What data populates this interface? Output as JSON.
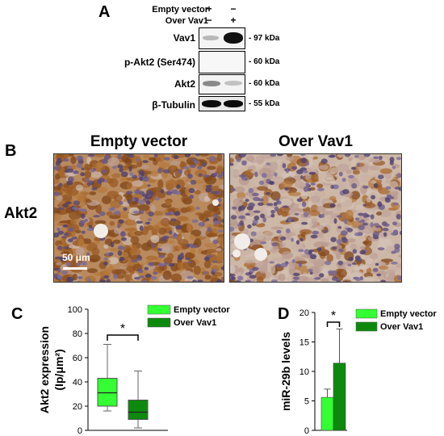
{
  "panelA": {
    "letter": "A",
    "conditions": [
      {
        "label": "Empty vector",
        "lane1": "+",
        "lane2": "−"
      },
      {
        "label": "Over Vav1",
        "lane1": "−",
        "lane2": "+"
      }
    ],
    "blots": [
      {
        "protein": "Vav1",
        "kda": "- 97 kDa"
      },
      {
        "protein": "p-Akt2 (Ser474)",
        "kda": "- 60 kDa"
      },
      {
        "protein": "Akt2",
        "kda": "- 60 kDa"
      },
      {
        "protein": "β-Tubulin",
        "kda": "- 55 kDa"
      }
    ]
  },
  "panelB": {
    "letter": "B",
    "row_label": "Akt2",
    "titles": [
      "Empty vector",
      "Over Vav1"
    ],
    "scale_bar": "50 μm",
    "brown_staining_level": [
      0.85,
      0.3
    ]
  },
  "panelC": {
    "letter": "C",
    "significance": "*",
    "legend": [
      "Empty vector",
      "Over Vav1"
    ]
  },
  "panelD": {
    "letter": "D",
    "significance": "*",
    "legend": [
      "Empty vector",
      "Over Vav1"
    ]
  },
  "colors": {
    "light_green": "#33ff33",
    "dark_green": "#0d8a0d"
  },
  "chart_data": [
    {
      "type": "box",
      "title": "",
      "xlabel": "",
      "ylabel": "Akt2 expression (Ip/μm²)",
      "ylim": [
        0,
        100
      ],
      "yticks": [
        0,
        20,
        40,
        60,
        80,
        100
      ],
      "series": [
        {
          "name": "Empty vector",
          "min": 16,
          "q1": 20,
          "median": 31,
          "q3": 43,
          "max": 71
        },
        {
          "name": "Over Vav1",
          "min": 2,
          "q1": 9,
          "median": 15,
          "q3": 25,
          "max": 49
        }
      ],
      "legend_position": "top-right"
    },
    {
      "type": "bar",
      "title": "",
      "xlabel": "",
      "ylabel": "miR-29b levels",
      "ylim": [
        0,
        20
      ],
      "yticks": [
        0,
        5,
        10,
        15,
        20
      ],
      "series": [
        {
          "name": "Empty vector",
          "value": 5.6,
          "error": 1.4
        },
        {
          "name": "Over Vav1",
          "value": 11.4,
          "error": 5.8
        }
      ],
      "legend_position": "top-right"
    }
  ]
}
